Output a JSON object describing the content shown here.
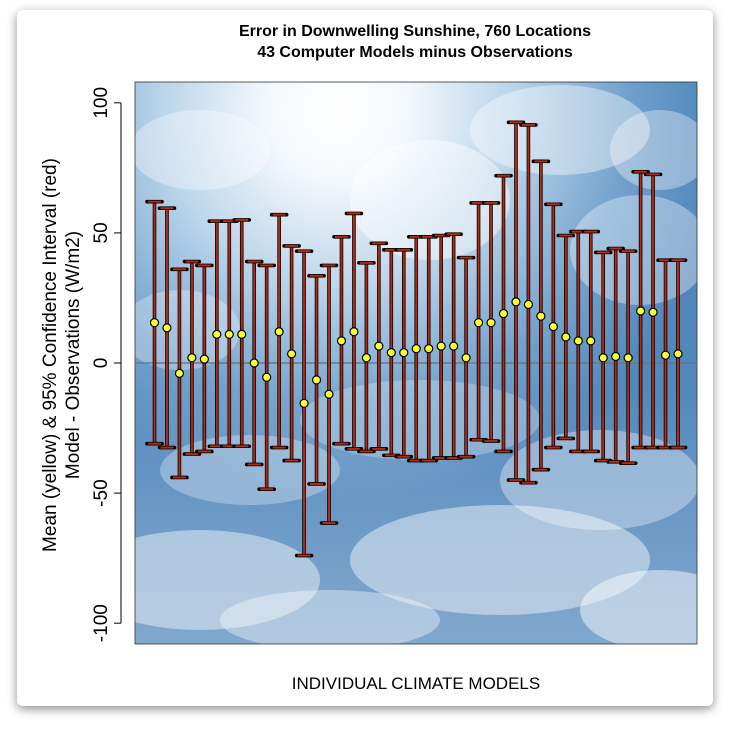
{
  "chart_data": {
    "type": "errorbar",
    "title": [
      "Error in Downwelling Sunshine, 760 Locations",
      "43 Computer Models minus Observations"
    ],
    "xlabel": "INDIVIDUAL CLIMATE MODELS",
    "ylabel": [
      "Mean (yellow) & 95% Confidence Interval (red)",
      "Model - Observations (W/m2)"
    ],
    "ylim": [
      -108,
      108
    ],
    "yticks": [
      100,
      50,
      0,
      -50,
      -100
    ],
    "zero_line": true,
    "mean_color": "#ffff33",
    "ci_color": "#b52a0c",
    "models": [
      {
        "mean": 15.5,
        "upper": 62,
        "lower": -31
      },
      {
        "mean": 13.5,
        "upper": 59.5,
        "lower": -32.5
      },
      {
        "mean": -4,
        "upper": 36,
        "lower": -44
      },
      {
        "mean": 2,
        "upper": 39,
        "lower": -35
      },
      {
        "mean": 1.5,
        "upper": 37.5,
        "lower": -34
      },
      {
        "mean": 11,
        "upper": 54.5,
        "lower": -32
      },
      {
        "mean": 11,
        "upper": 54.5,
        "lower": -32
      },
      {
        "mean": 11,
        "upper": 55,
        "lower": -32
      },
      {
        "mean": 0,
        "upper": 39,
        "lower": -39
      },
      {
        "mean": -5.5,
        "upper": 37.5,
        "lower": -48.5
      },
      {
        "mean": 12,
        "upper": 57,
        "lower": -32.5
      },
      {
        "mean": 3.5,
        "upper": 45,
        "lower": -37.5
      },
      {
        "mean": -15.5,
        "upper": 43,
        "lower": -74
      },
      {
        "mean": -6.5,
        "upper": 33.5,
        "lower": -46.5
      },
      {
        "mean": -12,
        "upper": 37.5,
        "lower": -61.5
      },
      {
        "mean": 8.5,
        "upper": 48.5,
        "lower": -31
      },
      {
        "mean": 12,
        "upper": 57.5,
        "lower": -33
      },
      {
        "mean": 2,
        "upper": 38.5,
        "lower": -34
      },
      {
        "mean": 6.5,
        "upper": 46,
        "lower": -33
      },
      {
        "mean": 4,
        "upper": 43.5,
        "lower": -35.5
      },
      {
        "mean": 4,
        "upper": 43.5,
        "lower": -36
      },
      {
        "mean": 5.5,
        "upper": 48.5,
        "lower": -37.5
      },
      {
        "mean": 5.5,
        "upper": 48.5,
        "lower": -37.5
      },
      {
        "mean": 6.5,
        "upper": 49,
        "lower": -36.5
      },
      {
        "mean": 6.5,
        "upper": 49.5,
        "lower": -36.5
      },
      {
        "mean": 2,
        "upper": 40.5,
        "lower": -36
      },
      {
        "mean": 15.5,
        "upper": 61.5,
        "lower": -29.5
      },
      {
        "mean": 15.5,
        "upper": 61.5,
        "lower": -30
      },
      {
        "mean": 19,
        "upper": 72,
        "lower": -34
      },
      {
        "mean": 23.5,
        "upper": 92.5,
        "lower": -45
      },
      {
        "mean": 22.5,
        "upper": 91.5,
        "lower": -46
      },
      {
        "mean": 18,
        "upper": 77.5,
        "lower": -41
      },
      {
        "mean": 14,
        "upper": 61,
        "lower": -32.5
      },
      {
        "mean": 10,
        "upper": 49,
        "lower": -29
      },
      {
        "mean": 8.5,
        "upper": 50.5,
        "lower": -34
      },
      {
        "mean": 8.5,
        "upper": 50.5,
        "lower": -34
      },
      {
        "mean": 2,
        "upper": 42.5,
        "lower": -37.5
      },
      {
        "mean": 2.5,
        "upper": 44,
        "lower": -38
      },
      {
        "mean": 2,
        "upper": 43,
        "lower": -38.5
      },
      {
        "mean": 20,
        "upper": 73.5,
        "lower": -32.5
      },
      {
        "mean": 19.5,
        "upper": 72.5,
        "lower": -32.5
      },
      {
        "mean": 3,
        "upper": 39.5,
        "lower": -32.5
      },
      {
        "mean": 3.5,
        "upper": 39.5,
        "lower": -32.5
      }
    ]
  }
}
